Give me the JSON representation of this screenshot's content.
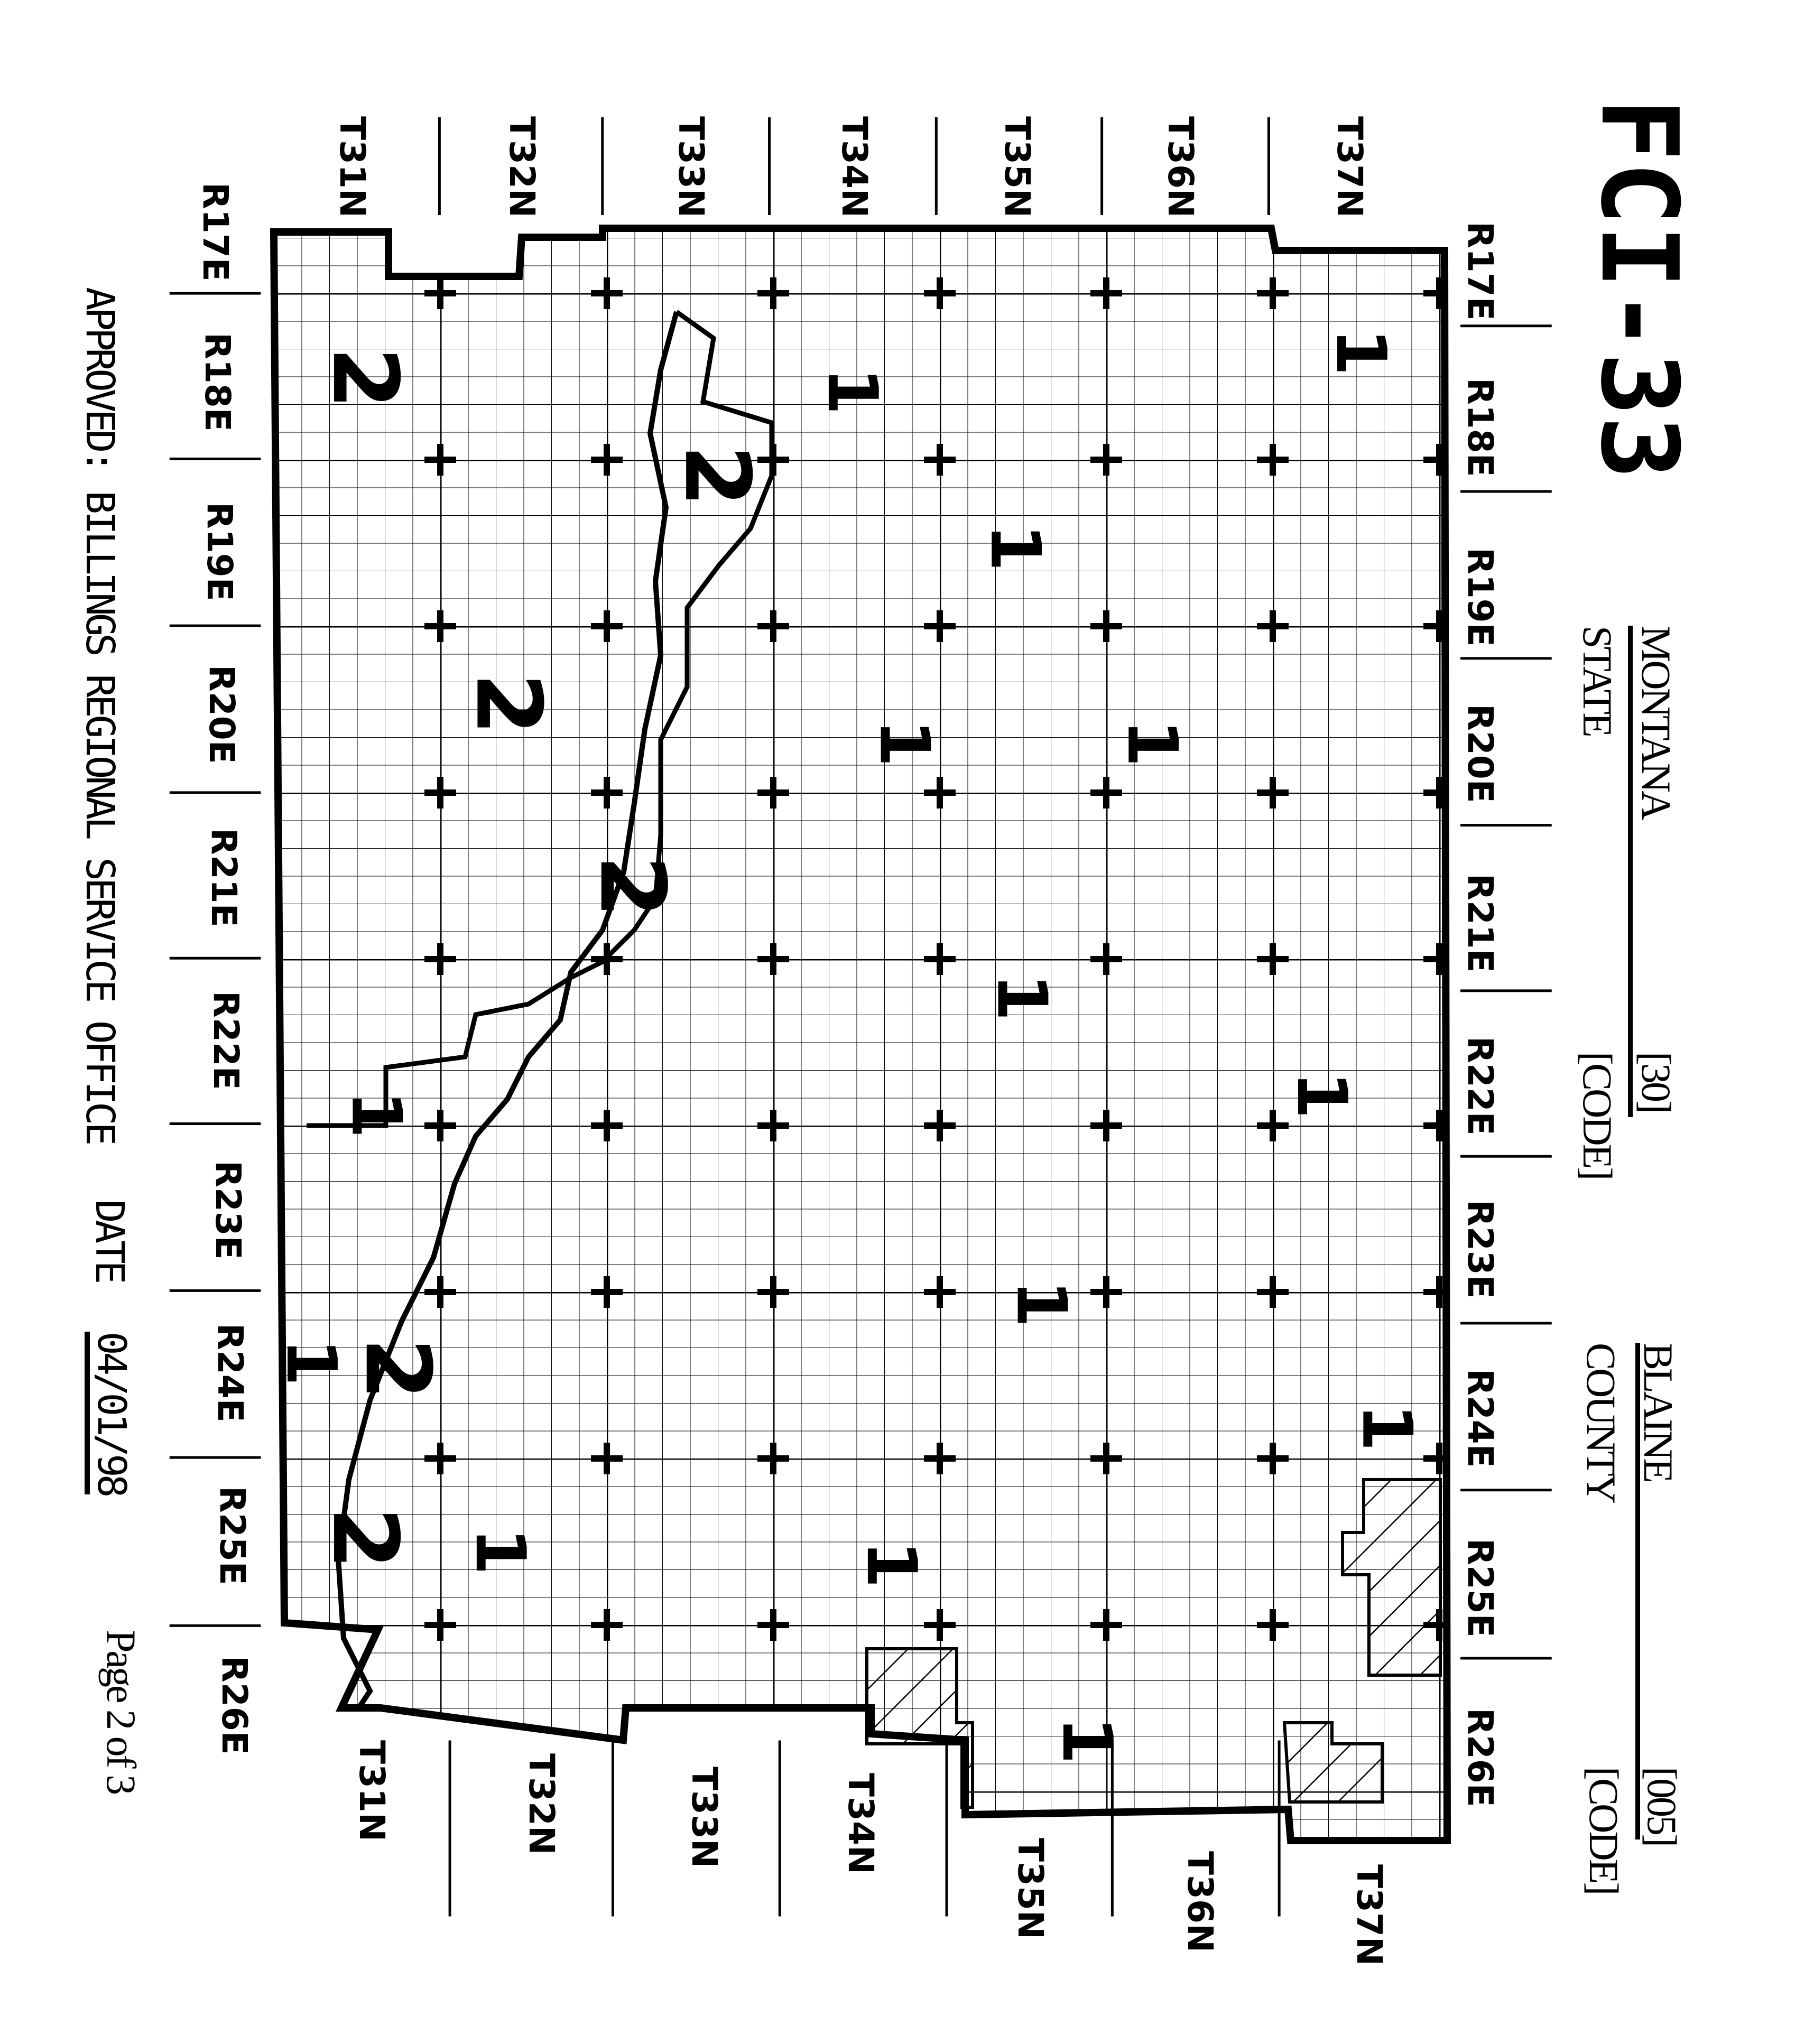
{
  "form_id": "FCI-33",
  "state": {
    "name": "MONTANA",
    "label": "STATE",
    "code": "[30]",
    "code_label": "[CODE]"
  },
  "county": {
    "name": "BLAINE",
    "label": "COUNTY",
    "code": "[005]",
    "code_label": "[CODE]"
  },
  "footer": {
    "approved": "APPROVED: BILLINGS REGIONAL SERVICE OFFICE",
    "date_label": "DATE",
    "date": "04/01/98",
    "page": "Page 2 of 3"
  },
  "townships_top": [
    "T31N",
    "T32N",
    "T33N",
    "T34N",
    "T35N",
    "T36N",
    "T37N"
  ],
  "townships_bottom": [
    "T31N",
    "T32N",
    "T33N",
    "T34N",
    "T35N",
    "T36N",
    "T37N"
  ],
  "ranges_left": [
    "R17E",
    "R18E",
    "R19E",
    "R20E",
    "R21E",
    "R22E",
    "R23E",
    "R24E",
    "R25E",
    "R26E"
  ],
  "ranges_right": [
    "R17E",
    "R18E",
    "R19E",
    "R20E",
    "R21E",
    "R22E",
    "R23E",
    "R24E",
    "R25E",
    "R26E"
  ],
  "zone_labels": [
    "1",
    "1",
    "1",
    "1",
    "1",
    "1",
    "1",
    "1",
    "1",
    "1",
    "1",
    "1",
    "1",
    "1",
    "2",
    "2",
    "2",
    "2",
    "2",
    "2"
  ],
  "colors": {
    "ink": "#000000",
    "paper": "#ffffff"
  }
}
